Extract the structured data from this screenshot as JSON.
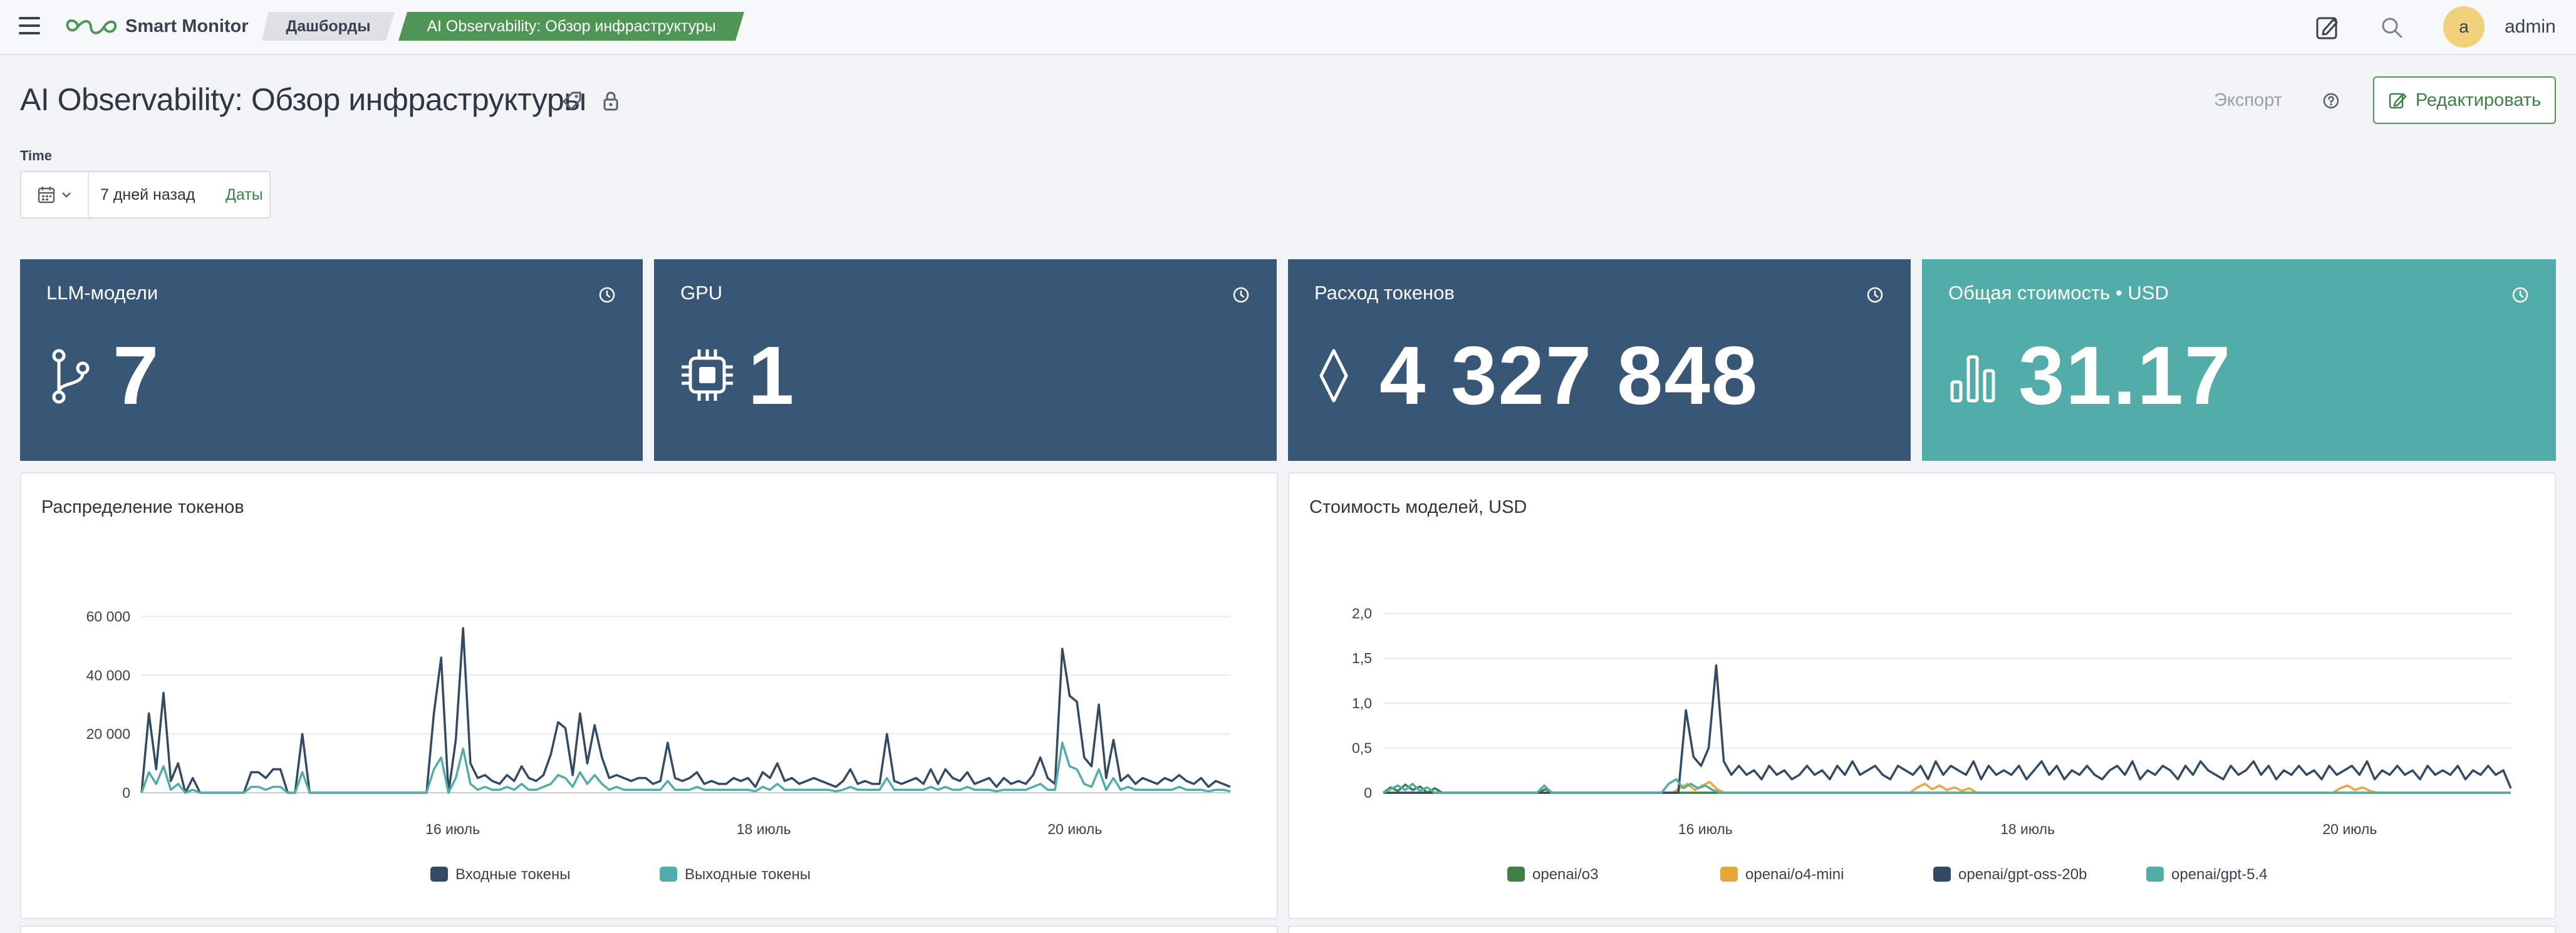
{
  "topbar": {
    "brand": "Smart Monitor",
    "breadcrumbs": [
      "Дашборды",
      "AI Observability: Обзор инфраструктуры"
    ],
    "avatar_letter": "a",
    "username": "admin"
  },
  "header": {
    "title": "AI Observability: Обзор инфраструктуры",
    "export_label": "Экспорт",
    "edit_label": "Редактировать"
  },
  "time": {
    "label": "Time",
    "value": "7 дней назад",
    "dates_label": "Даты"
  },
  "tiles": [
    {
      "title": "LLM-модели",
      "value": "7",
      "icon": "branch-icon",
      "color": "#385675"
    },
    {
      "title": "GPU",
      "value": "1",
      "icon": "chip-icon",
      "color": "#385675"
    },
    {
      "title": "Расход токенов",
      "value": "4 327 848",
      "icon": "diamond-icon",
      "color": "#385675"
    },
    {
      "title": "Общая стоимость • USD",
      "value": "31.17",
      "icon": "bar-chart-icon",
      "color": "#52aca8"
    }
  ],
  "chart_data": [
    {
      "type": "line",
      "title": "Распределение токенов",
      "x_tick_labels": [
        "16 июль",
        "18 июль",
        "20 июль"
      ],
      "x_ticks_at": [
        8,
        16,
        24
      ],
      "x_range": [
        0,
        28
      ],
      "ylim": [
        0,
        65000
      ],
      "y_ticks": [
        0,
        20000,
        40000,
        60000
      ],
      "y_tick_labels": [
        "0",
        "20 000",
        "40 000",
        "60 000"
      ],
      "grid": true,
      "legend_position": "bottom",
      "series": [
        {
          "name": "Входные токены",
          "color": "#324a63",
          "values": [
            0,
            27000,
            8000,
            34000,
            4000,
            10000,
            0,
            5000,
            0,
            0,
            0,
            0,
            0,
            0,
            0,
            7000,
            7000,
            5000,
            8000,
            8000,
            0,
            0,
            20000,
            0,
            0,
            0,
            0,
            0,
            0,
            0,
            0,
            0,
            0,
            0,
            0,
            0,
            0,
            0,
            0,
            0,
            27000,
            46000,
            0,
            18000,
            56000,
            10000,
            5000,
            6000,
            4000,
            3000,
            6000,
            4000,
            9000,
            5000,
            4000,
            6000,
            13000,
            24000,
            22000,
            6000,
            27000,
            10000,
            23000,
            12000,
            5000,
            6000,
            5000,
            4000,
            5000,
            5000,
            3000,
            4000,
            17000,
            5000,
            4000,
            5000,
            7000,
            3000,
            4000,
            3000,
            3000,
            5000,
            4000,
            5000,
            2000,
            7000,
            5000,
            10000,
            4000,
            5000,
            3000,
            4000,
            5000,
            4000,
            3000,
            2000,
            4000,
            8000,
            3000,
            4000,
            3000,
            3000,
            20000,
            4000,
            3000,
            4000,
            5000,
            3000,
            8000,
            3000,
            8000,
            5000,
            4000,
            7000,
            3000,
            4000,
            5000,
            2000,
            5000,
            3000,
            4000,
            3000,
            6000,
            12000,
            5000,
            3000,
            49000,
            33000,
            31000,
            12000,
            9000,
            30000,
            5000,
            18000,
            4000,
            6000,
            3000,
            5000,
            4000,
            3000,
            5000,
            4000,
            6000,
            4000,
            3000,
            5000,
            2000,
            4000,
            3000,
            2000
          ]
        },
        {
          "name": "Выходные токены",
          "color": "#52aca8",
          "values": [
            0,
            7000,
            3000,
            9000,
            1000,
            3000,
            0,
            1000,
            0,
            0,
            0,
            0,
            0,
            0,
            0,
            2000,
            2000,
            1000,
            2000,
            2000,
            0,
            0,
            7000,
            0,
            0,
            0,
            0,
            0,
            0,
            0,
            0,
            0,
            0,
            0,
            0,
            0,
            0,
            0,
            0,
            0,
            8000,
            12000,
            0,
            5000,
            15000,
            3000,
            1000,
            2000,
            1000,
            1000,
            2000,
            1000,
            3000,
            1000,
            1000,
            2000,
            3000,
            6000,
            5000,
            2000,
            7000,
            3000,
            6000,
            3000,
            1000,
            2000,
            1000,
            1000,
            1000,
            1000,
            1000,
            1000,
            4000,
            1000,
            1000,
            1000,
            2000,
            1000,
            1000,
            1000,
            1000,
            1000,
            1000,
            1000,
            500,
            2000,
            1000,
            3000,
            1000,
            1000,
            1000,
            1000,
            1000,
            1000,
            1000,
            500,
            1000,
            2000,
            1000,
            1000,
            1000,
            1000,
            5000,
            1000,
            1000,
            1000,
            1000,
            1000,
            2000,
            1000,
            2000,
            1000,
            1000,
            2000,
            1000,
            1000,
            1000,
            500,
            1000,
            1000,
            1000,
            1000,
            2000,
            3000,
            1000,
            1000,
            17000,
            9000,
            8000,
            3000,
            2000,
            8000,
            1000,
            5000,
            1000,
            2000,
            1000,
            1000,
            1000,
            1000,
            1000,
            1000,
            2000,
            1000,
            1000,
            1000,
            500,
            1000,
            1000,
            500
          ]
        }
      ]
    },
    {
      "type": "line",
      "title": "Стоимость моделей, USD",
      "x_tick_labels": [
        "16 июль",
        "18 июль",
        "20 июль"
      ],
      "x_ticks_at": [
        8,
        16,
        24
      ],
      "x_range": [
        0,
        28
      ],
      "ylim": [
        0,
        2.2
      ],
      "y_ticks": [
        0,
        0.5,
        1.0,
        1.5,
        2.0
      ],
      "y_tick_labels": [
        "0",
        "0,5",
        "1,0",
        "1,5",
        "2,0"
      ],
      "grid": true,
      "legend_position": "bottom",
      "series": [
        {
          "name": "openai/o3",
          "color": "#3e8045",
          "values": [
            0,
            0.06,
            0.02,
            0.09,
            0.03,
            0.07,
            0,
            0.05,
            0,
            0,
            0,
            0,
            0,
            0,
            0,
            0,
            0,
            0,
            0,
            0,
            0,
            0,
            0.04,
            0,
            0,
            0,
            0,
            0,
            0,
            0,
            0,
            0,
            0,
            0,
            0,
            0,
            0,
            0,
            0,
            0,
            0,
            0,
            0,
            0,
            0,
            0,
            0,
            0,
            0,
            0,
            0,
            0,
            0,
            0,
            0,
            0,
            0,
            0,
            0,
            0,
            0,
            0,
            0,
            0,
            0,
            0,
            0,
            0,
            0,
            0,
            0,
            0,
            0,
            0,
            0,
            0,
            0,
            0,
            0,
            0,
            0,
            0,
            0,
            0,
            0,
            0,
            0,
            0,
            0,
            0,
            0,
            0,
            0,
            0,
            0,
            0,
            0,
            0,
            0,
            0,
            0,
            0,
            0,
            0,
            0,
            0,
            0,
            0,
            0,
            0,
            0,
            0,
            0,
            0,
            0,
            0,
            0,
            0,
            0,
            0,
            0,
            0,
            0,
            0,
            0,
            0,
            0,
            0,
            0,
            0,
            0,
            0,
            0,
            0,
            0,
            0,
            0,
            0,
            0,
            0,
            0,
            0,
            0,
            0,
            0,
            0,
            0,
            0,
            0,
            0,
            0,
            0,
            0,
            0
          ]
        },
        {
          "name": "openai/o4-mini",
          "color": "#e8a838",
          "values": [
            0,
            0,
            0,
            0,
            0,
            0,
            0,
            0,
            0,
            0,
            0,
            0,
            0,
            0,
            0,
            0,
            0,
            0,
            0,
            0,
            0,
            0,
            0,
            0,
            0,
            0,
            0,
            0,
            0,
            0,
            0,
            0,
            0,
            0,
            0,
            0,
            0,
            0,
            0,
            0,
            0.05,
            0.1,
            0.03,
            0.08,
            0.12,
            0.04,
            0,
            0,
            0,
            0,
            0,
            0,
            0,
            0,
            0,
            0,
            0,
            0,
            0,
            0,
            0,
            0,
            0,
            0,
            0,
            0,
            0,
            0,
            0,
            0,
            0,
            0,
            0.06,
            0.1,
            0.04,
            0.08,
            0.03,
            0.06,
            0.02,
            0.05,
            0,
            0,
            0,
            0,
            0,
            0,
            0,
            0,
            0,
            0,
            0,
            0,
            0,
            0,
            0,
            0,
            0,
            0,
            0,
            0,
            0,
            0,
            0,
            0,
            0,
            0,
            0,
            0,
            0,
            0,
            0,
            0,
            0,
            0,
            0,
            0,
            0,
            0,
            0,
            0,
            0,
            0,
            0,
            0,
            0,
            0,
            0,
            0,
            0,
            0.05,
            0.08,
            0.03,
            0.06,
            0.02,
            0,
            0,
            0,
            0,
            0,
            0,
            0,
            0,
            0,
            0,
            0,
            0,
            0,
            0,
            0,
            0,
            0,
            0,
            0
          ]
        },
        {
          "name": "openai/gpt-oss-20b",
          "color": "#324a63",
          "values": [
            0,
            0,
            0,
            0,
            0,
            0,
            0,
            0,
            0,
            0,
            0,
            0,
            0,
            0,
            0,
            0,
            0,
            0,
            0,
            0,
            0,
            0,
            0,
            0,
            0,
            0,
            0,
            0,
            0,
            0,
            0,
            0,
            0,
            0,
            0,
            0,
            0,
            0,
            0,
            0,
            0.92,
            0.4,
            0.3,
            0.5,
            1.42,
            0.35,
            0.2,
            0.3,
            0.2,
            0.25,
            0.15,
            0.3,
            0.2,
            0.25,
            0.15,
            0.2,
            0.3,
            0.2,
            0.25,
            0.15,
            0.3,
            0.2,
            0.35,
            0.2,
            0.25,
            0.3,
            0.2,
            0.15,
            0.3,
            0.25,
            0.2,
            0.3,
            0.15,
            0.35,
            0.2,
            0.3,
            0.25,
            0.2,
            0.35,
            0.15,
            0.3,
            0.2,
            0.25,
            0.2,
            0.3,
            0.15,
            0.25,
            0.35,
            0.2,
            0.3,
            0.15,
            0.25,
            0.2,
            0.3,
            0.2,
            0.15,
            0.25,
            0.3,
            0.2,
            0.35,
            0.15,
            0.25,
            0.2,
            0.3,
            0.25,
            0.15,
            0.3,
            0.2,
            0.35,
            0.25,
            0.2,
            0.15,
            0.3,
            0.2,
            0.25,
            0.35,
            0.2,
            0.3,
            0.15,
            0.25,
            0.2,
            0.3,
            0.2,
            0.25,
            0.15,
            0.3,
            0.2,
            0.25,
            0.3,
            0.2,
            0.35,
            0.15,
            0.25,
            0.2,
            0.3,
            0.2,
            0.25,
            0.15,
            0.3,
            0.2,
            0.25,
            0.2,
            0.3,
            0.15,
            0.25,
            0.2,
            0.3,
            0.2,
            0.25,
            0.05
          ]
        },
        {
          "name": "openai/gpt-5.4",
          "color": "#52aca8",
          "values": [
            0,
            0.04,
            0.08,
            0.03,
            0.1,
            0.02,
            0.06,
            0,
            0,
            0,
            0,
            0,
            0,
            0,
            0,
            0,
            0,
            0,
            0,
            0,
            0,
            0,
            0.08,
            0,
            0,
            0,
            0,
            0,
            0,
            0,
            0,
            0,
            0,
            0,
            0,
            0,
            0,
            0,
            0,
            0.1,
            0.15,
            0.05,
            0.1,
            0.05,
            0.08,
            0.03,
            0,
            0,
            0,
            0,
            0,
            0,
            0,
            0,
            0,
            0,
            0,
            0,
            0,
            0,
            0,
            0,
            0,
            0,
            0,
            0,
            0,
            0,
            0,
            0,
            0,
            0,
            0,
            0,
            0,
            0,
            0,
            0,
            0,
            0,
            0,
            0,
            0,
            0,
            0,
            0,
            0,
            0,
            0,
            0,
            0,
            0,
            0,
            0,
            0,
            0,
            0,
            0,
            0,
            0,
            0,
            0,
            0,
            0,
            0,
            0,
            0,
            0,
            0,
            0,
            0,
            0,
            0,
            0,
            0,
            0,
            0,
            0,
            0,
            0,
            0,
            0,
            0,
            0,
            0,
            0,
            0,
            0,
            0,
            0,
            0,
            0,
            0,
            0,
            0,
            0,
            0,
            0,
            0,
            0,
            0,
            0,
            0,
            0,
            0,
            0,
            0,
            0,
            0,
            0,
            0,
            0,
            0,
            0,
            0
          ]
        }
      ]
    }
  ]
}
